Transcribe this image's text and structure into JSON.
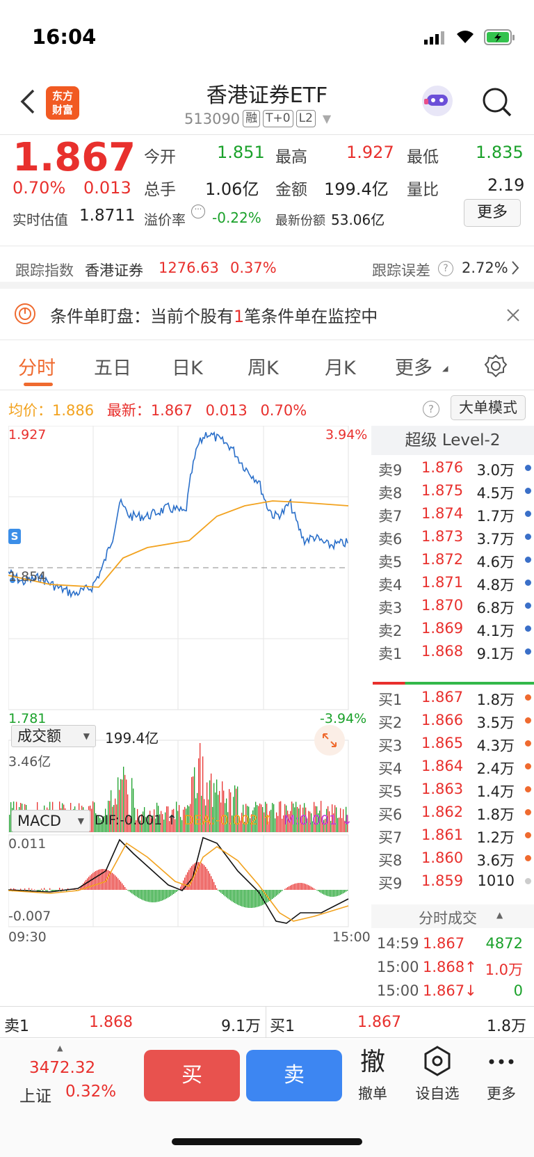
{
  "status": {
    "time": "16:04"
  },
  "header": {
    "title": "香港证券ETF",
    "code": "513090",
    "tags": [
      "融",
      "T+0",
      "L2"
    ],
    "logo_line1": "东方",
    "logo_line2": "财富"
  },
  "quote": {
    "price": "1.867",
    "change_pct": "0.70%",
    "change": "0.013",
    "open_label": "今开",
    "open": "1.851",
    "high_label": "最高",
    "high": "1.927",
    "low_label": "最低",
    "low": "1.835",
    "volume_label": "总手",
    "volume": "1.06亿",
    "amount_label": "金额",
    "amount": "199.4亿",
    "ratio_label": "量比",
    "ratio": "2.19",
    "iopv_label": "实时估值",
    "iopv": "1.8711",
    "premium_label": "溢价率",
    "premium": "-0.22%",
    "shares_label": "最新份额",
    "shares": "53.06亿",
    "more_label": "更多"
  },
  "tracking": {
    "label": "跟踪指数",
    "index": "香港证券",
    "index_value": "1276.63",
    "index_pct": "0.37%",
    "error_label": "跟踪误差",
    "error": "2.72%"
  },
  "notice": {
    "prefix": "条件单盯盘：当前个股有",
    "count": "1",
    "suffix": "笔条件单在监控中"
  },
  "tabs": [
    "分时",
    "五日",
    "日K",
    "周K",
    "月K",
    "更多"
  ],
  "legend": {
    "avg_label": "均价：",
    "avg": "1.886",
    "last_label": "最新：",
    "last": "1.867",
    "chg": "0.013",
    "pct": "0.70%",
    "mode": "大单模式"
  },
  "chart": {
    "top_price": "1.927",
    "top_pct": "3.94%",
    "mid_price": "1.854",
    "bot_price": "1.781",
    "bot_pct": "-3.94%",
    "vol_selector": "成交额",
    "vol_total": "199.4亿",
    "vol_max": "3.46亿",
    "macd_selector": "MACD",
    "dif": "DIF:-0.001 ↑",
    "dea": "DEA:-0.002 ↑",
    "m": "M:0.001 ↓",
    "macd_top": "0.011",
    "macd_bot": "-0.007",
    "time_start": "09:30",
    "time_end": "15:00",
    "colors": {
      "price": "#2a6fc9",
      "avg": "#f2a21e",
      "up": "#e8302d",
      "down": "#1aa12a"
    }
  },
  "orderbook": {
    "title": "超级 Level-2",
    "asks": [
      {
        "label": "卖9",
        "price": "1.876",
        "vol": "3.0万"
      },
      {
        "label": "卖8",
        "price": "1.875",
        "vol": "4.5万"
      },
      {
        "label": "卖7",
        "price": "1.874",
        "vol": "1.7万"
      },
      {
        "label": "卖6",
        "price": "1.873",
        "vol": "3.7万"
      },
      {
        "label": "卖5",
        "price": "1.872",
        "vol": "4.6万"
      },
      {
        "label": "卖4",
        "price": "1.871",
        "vol": "4.8万"
      },
      {
        "label": "卖3",
        "price": "1.870",
        "vol": "6.8万"
      },
      {
        "label": "卖2",
        "price": "1.869",
        "vol": "4.1万"
      },
      {
        "label": "卖1",
        "price": "1.868",
        "vol": "9.1万"
      }
    ],
    "bids": [
      {
        "label": "买1",
        "price": "1.867",
        "vol": "1.8万"
      },
      {
        "label": "买2",
        "price": "1.866",
        "vol": "3.5万"
      },
      {
        "label": "买3",
        "price": "1.865",
        "vol": "4.3万"
      },
      {
        "label": "买4",
        "price": "1.864",
        "vol": "2.4万"
      },
      {
        "label": "买5",
        "price": "1.863",
        "vol": "1.4万"
      },
      {
        "label": "买6",
        "price": "1.862",
        "vol": "1.8万"
      },
      {
        "label": "买7",
        "price": "1.861",
        "vol": "1.2万"
      },
      {
        "label": "买8",
        "price": "1.860",
        "vol": "3.6万"
      },
      {
        "label": "买9",
        "price": "1.859",
        "vol": "1010"
      }
    ]
  },
  "ticks": {
    "title": "分时成交",
    "rows": [
      {
        "time": "14:59",
        "price": "1.867",
        "vol": "4872"
      },
      {
        "time": "15:00",
        "price": "1.868↑",
        "vol": "1.0万"
      },
      {
        "time": "15:00",
        "price": "1.867↓",
        "vol": "0"
      }
    ]
  },
  "bottom_quote": {
    "ask_label": "卖1",
    "ask_price": "1.868",
    "ask_vol": "9.1万",
    "bid_label": "买1",
    "bid_price": "1.867",
    "bid_vol": "1.8万"
  },
  "toolbar": {
    "index_value": "3472.32",
    "index_name": "上证",
    "index_pct": "0.32%",
    "buy": "买",
    "sell": "卖",
    "cancel_icon": "撤",
    "cancel": "撤单",
    "watch": "设自选",
    "more": "更多"
  }
}
